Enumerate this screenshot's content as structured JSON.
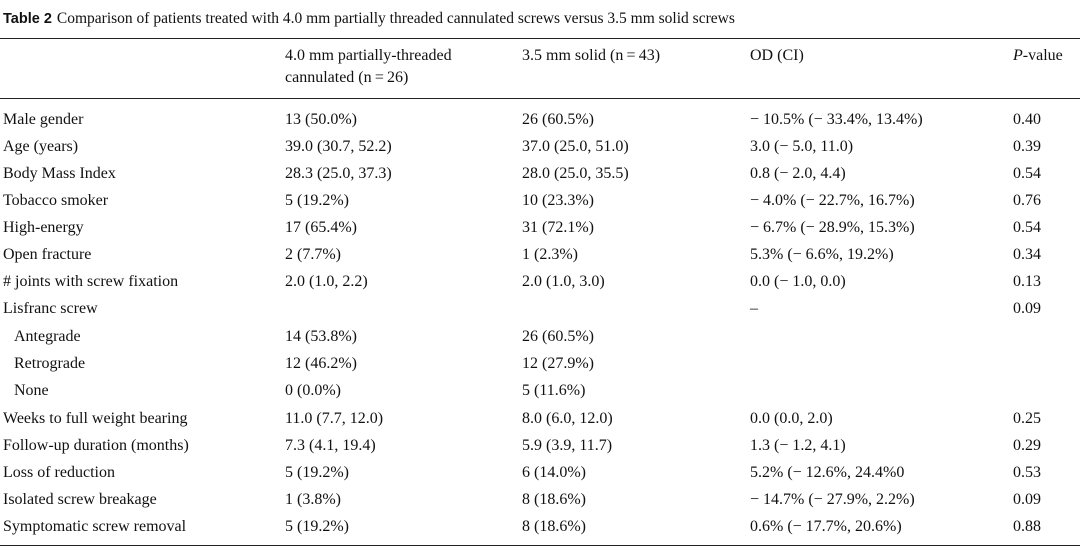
{
  "caption": {
    "label": "Table 2",
    "text": "Comparison of patients treated with 4.0 mm partially threaded cannulated screws versus 3.5 mm solid screws"
  },
  "headers": {
    "col1_line1": "4.0 mm partially-threaded",
    "col1_line2": "cannulated (n = 26)",
    "col2": "3.5 mm solid (n = 43)",
    "col3": "OD (CI)",
    "col4_italic": "P",
    "col4_rest": "-value"
  },
  "rows": [
    {
      "label": "Male gender",
      "cannulated": "13 (50.0%)",
      "solid": "26 (60.5%)",
      "od": "− 10.5% (− 33.4%, 13.4%)",
      "p": "0.40"
    },
    {
      "label": "Age (years)",
      "cannulated": "39.0 (30.7, 52.2)",
      "solid": "37.0 (25.0, 51.0)",
      "od": "3.0 (− 5.0, 11.0)",
      "p": "0.39"
    },
    {
      "label": "Body Mass Index",
      "cannulated": "28.3 (25.0, 37.3)",
      "solid": "28.0 (25.0, 35.5)",
      "od": "0.8 (− 2.0, 4.4)",
      "p": "0.54"
    },
    {
      "label": "Tobacco smoker",
      "cannulated": "5 (19.2%)",
      "solid": "10 (23.3%)",
      "od": "− 4.0% (− 22.7%, 16.7%)",
      "p": "0.76"
    },
    {
      "label": "High-energy",
      "cannulated": "17 (65.4%)",
      "solid": "31 (72.1%)",
      "od": "− 6.7% (− 28.9%, 15.3%)",
      "p": "0.54"
    },
    {
      "label": "Open fracture",
      "cannulated": "2 (7.7%)",
      "solid": "1 (2.3%)",
      "od": "5.3% (− 6.6%, 19.2%)",
      "p": "0.34"
    },
    {
      "label": "# joints with screw fixation",
      "cannulated": "2.0 (1.0, 2.2)",
      "solid": "2.0 (1.0, 3.0)",
      "od": "0.0 (− 1.0, 0.0)",
      "p": "0.13"
    },
    {
      "label": "Lisfranc screw",
      "cannulated": "",
      "solid": "",
      "od": "–",
      "p": "0.09"
    },
    {
      "label": "Antegrade",
      "cannulated": "14 (53.8%)",
      "solid": "26 (60.5%)",
      "od": "",
      "p": ""
    },
    {
      "label": "Retrograde",
      "cannulated": "12 (46.2%)",
      "solid": "12 (27.9%)",
      "od": "",
      "p": ""
    },
    {
      "label": "None",
      "cannulated": "0 (0.0%)",
      "solid": "5 (11.6%)",
      "od": "",
      "p": ""
    },
    {
      "label": "Weeks to full weight bearing",
      "cannulated": "11.0 (7.7, 12.0)",
      "solid": "8.0 (6.0, 12.0)",
      "od": "0.0 (0.0, 2.0)",
      "p": "0.25"
    },
    {
      "label": "Follow-up duration (months)",
      "cannulated": "7.3 (4.1, 19.4)",
      "solid": "5.9 (3.9, 11.7)",
      "od": "1.3 (− 1.2, 4.1)",
      "p": "0.29"
    },
    {
      "label": "Loss of reduction",
      "cannulated": "5 (19.2%)",
      "solid": "6 (14.0%)",
      "od": "5.2% (− 12.6%, 24.4%0",
      "p": "0.53"
    },
    {
      "label": "Isolated screw breakage",
      "cannulated": "1 (3.8%)",
      "solid": "8 (18.6%)",
      "od": "− 14.7% (− 27.9%, 2.2%)",
      "p": "0.09"
    },
    {
      "label": "Symptomatic screw removal",
      "cannulated": "5 (19.2%)",
      "solid": "8 (18.6%)",
      "od": "0.6% (− 17.7%, 20.6%)",
      "p": "0.88"
    }
  ]
}
